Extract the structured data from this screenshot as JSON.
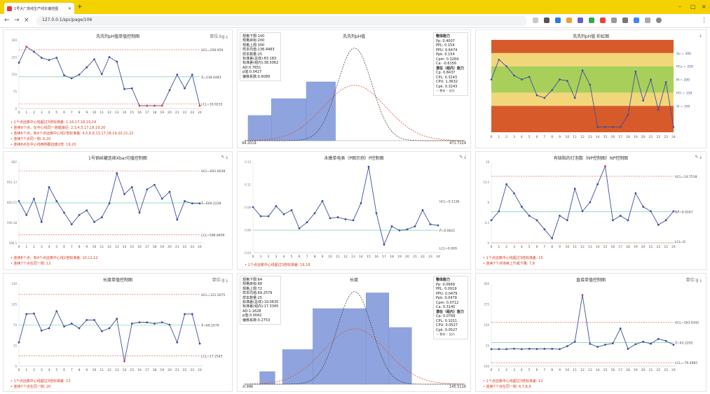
{
  "browser": {
    "tab_title": "1号大厂高线生产线长偏控图",
    "url": "127.0.0.1/spc/page/106"
  },
  "p1": {
    "title": "洗洗剂pH值单值控制图",
    "unit": "单位:kg",
    "notes": [
      "1个点远离中心线超过3倍标准差: 1,16,17,18,19,24",
      "连续9个点，在中心线同一侧或接近: 2,3,4,5,17,18,19,20",
      "连续6个点，有4个点远离中心线2倍标准差: 4,5,6,8,13,17,18,19,20,21,22",
      "连续7个点同一侧: 6,20",
      "连续8点在中心线两侧都远离2倍: 19,20"
    ]
  },
  "p2": {
    "title": "洗洗剂pH值",
    "stats": [
      "规格下限:100",
      "规格目标:200",
      "规格上限:300",
      "样本均值:138.4483",
      "样本数量:25",
      "标准差(总体):83.183",
      "标准差(组内):38.5062",
      "AD:0.7651",
      "p值:0.0427",
      "偏移系数:0.6089"
    ],
    "cap": [
      "Pp: 0.4007",
      "PPL: 0.154",
      "PPU: 0.6474",
      "Ppk: 0.154",
      "Cpm: 0.3264",
      "Ca: -0.6156",
      "Cp: 0.8437",
      "CPL: 0.3243",
      "CPU: 1.3632",
      "Cpk: 0.3243"
    ],
    "cap_h1": "整体能力",
    "cap_h2": "潜在（组内）能力",
    "legend": "— 整体  -- 组内",
    "xmin": "94.2019",
    "xmax": "471.7224"
  },
  "p3": {
    "title": "洗洗剂pH值 彩虹图",
    "zones": [
      "Su = 300",
      "PCu = 250",
      "M = 200",
      "PCl = 150",
      "Sl = 100"
    ]
  },
  "p4": {
    "title": "1号钢丝罐连续Xbar均值控制图",
    "notes": [
      "连续8个点，有4个点远离中心线2倍标准差: 10,11,12",
      "连续7个点在同一侧: 12"
    ]
  },
  "p5": {
    "title": "未缴单电表（P图示例）P控制图",
    "notes": [
      "1个点远离中心线超过3倍标准差: 16,18"
    ]
  },
  "p6": {
    "title": "有缺陷的灯泡数（NP控制图）NP控制图",
    "notes": [
      "1个点远离中心线超过3倍标准差: 15",
      "连续7个点持续上升或下降: 7,8"
    ]
  },
  "p7": {
    "title": "长度单值控制图",
    "unit": "单位:g",
    "notes": [
      "1个点远离中心线超过3倍标准差: 13",
      "连续7个点在同一侧: 20"
    ]
  },
  "p8": {
    "title": "长度",
    "stats": [
      "规格下限:64",
      "规格目标:68",
      "规格上限:72",
      "样本均值:69.2579",
      "样本数量:25",
      "标准差(总体):19.0635",
      "标准差(组内):17.3345",
      "AD:1.1628",
      "p值:0.0042",
      "偏移系数:0.2753"
    ],
    "cap": [
      "Pp: 0.0669",
      "PPL: 0.0919",
      "PPU: 0.0479",
      "Ppk: 0.0479",
      "Cpm: 0.0712",
      "Ca: 0.3145",
      "Cp: 0.0769",
      "CPL: 0.1011",
      "CPU: 0.0527",
      "Cpk: 0.0527"
    ],
    "cap_h1": "整体能力",
    "cap_h2": "潜在（组内）能力",
    "legend": "— 整体  -- 组内",
    "xmin": "-0.996",
    "xmax": "145.5116"
  },
  "p9": {
    "title": "直接单值控制图",
    "unit": "单位:g",
    "notes": [
      "1个点远离中心线超过3倍标准差: 12",
      "连续7个点在同一侧: 6,7,8,9"
    ]
  },
  "colors": {
    "accent": "#f3d200",
    "line": "#3e4f9a",
    "ucl": "#d9553a",
    "center": "#5fc39a",
    "red": "#e0432b",
    "zone_red": "#d75a2a",
    "zone_yellow": "#f2d77a",
    "zone_green": "#a8cf5a"
  },
  "chart_data": [
    {
      "id": "p1",
      "type": "line",
      "x": [
        0,
        1,
        2,
        3,
        4,
        5,
        6,
        7,
        8,
        9,
        10,
        11,
        12,
        13,
        14,
        15,
        16,
        17,
        18,
        19,
        20,
        21,
        22,
        23,
        24
      ],
      "values": [
        200,
        270,
        248,
        222,
        212,
        222,
        145,
        132,
        148,
        180,
        215,
        150,
        225,
        205,
        85,
        88,
        12,
        12,
        12,
        12,
        80,
        148,
        88,
        148,
        12
      ],
      "ucl": 256.959,
      "center": 138.4483,
      "lcl": 19.9215,
      "ylim": [
        0,
        300
      ],
      "ylabels": [
        "UCL=256.959",
        "X̄=138.4483",
        "LCL=19.9215"
      ]
    },
    {
      "id": "p2",
      "type": "histogram",
      "bins": [
        [
          100,
          140,
          0.003
        ],
        [
          140,
          200,
          0.005
        ],
        [
          200,
          250,
          0.007
        ]
      ],
      "xlim": [
        94,
        472
      ],
      "ylim": [
        0,
        0.012
      ]
    },
    {
      "id": "p3",
      "type": "line",
      "values": [
        200,
        275,
        250,
        215,
        200,
        210,
        140,
        130,
        160,
        200,
        195,
        130,
        235,
        180,
        20,
        20,
        20,
        20,
        65,
        230,
        120,
        200,
        85,
        190,
        20
      ],
      "ylim": [
        0,
        350
      ]
    },
    {
      "id": "p4",
      "type": "line",
      "values": [
        600.3,
        599.7,
        600.4,
        599.4,
        600.9,
        600.3,
        599.8,
        599.3,
        599.7,
        599.9,
        599.4,
        599.6,
        600.2,
        601.5,
        600.6,
        600.9,
        599.8,
        600.8,
        601,
        600.4,
        600.7,
        599.5,
        600.3,
        600.2,
        600.2
      ],
      "ucl": 601.6038,
      "center": 600.2228,
      "lcl": 598.8409,
      "ylim": [
        598.5,
        602
      ],
      "ylabels": [
        "UCL=601.6038",
        "X̄=600.2228",
        "LCL=598.8409"
      ]
    },
    {
      "id": "p5",
      "type": "line",
      "values": [
        0.085,
        0.076,
        0.076,
        0.086,
        0.078,
        0.082,
        0.064,
        0.07,
        0.079,
        0.091,
        0.074,
        0.075,
        0.073,
        0.072,
        0.089,
        0.125,
        0.079,
        0.048,
        0.066,
        0.062,
        0.063,
        0.066,
        0.082,
        0.068,
        0.067
      ],
      "center": 0.0621,
      "ylim": [
        0.04,
        0.13
      ],
      "ylabels": [
        "UCL=0.1136",
        "P̄=0.0621",
        "LCL=0.009"
      ]
    },
    {
      "id": "p6",
      "type": "line",
      "values": [
        5,
        7,
        13,
        11,
        8,
        6,
        5,
        3,
        1,
        6,
        5,
        12,
        7,
        9,
        13,
        17,
        5,
        6,
        5,
        11,
        8,
        7,
        4,
        5,
        7
      ],
      "ucl": 14.7518,
      "center": 6.9167,
      "lcl": 0,
      "ylim": [
        0,
        18
      ],
      "ylabels": [
        "UCL=14.7518",
        "NP̄=6.9167",
        "LCL=0"
      ]
    },
    {
      "id": "p7",
      "type": "line",
      "values": [
        40,
        88,
        89,
        60,
        64,
        93,
        67,
        72,
        64,
        78,
        78,
        59,
        64,
        80,
        8,
        72,
        74,
        74,
        72,
        74,
        70,
        40,
        88,
        88,
        38
      ],
      "ucl": 121.2675,
      "center": 69.2579,
      "lcl": 17.2543,
      "ylim": [
        0,
        140
      ],
      "ylabels": [
        "UCL=121.2675",
        "X̄=69.2579",
        "LCL=17.2543"
      ]
    },
    {
      "id": "p8",
      "type": "histogram",
      "bins": [
        [
          10,
          20,
          0.002
        ],
        [
          25,
          45,
          0.0055
        ],
        [
          45,
          80,
          0.012
        ],
        [
          80,
          95,
          0.0145
        ],
        [
          95,
          110,
          0.009
        ]
      ],
      "xlim": [
        0,
        145
      ],
      "ylim": [
        0,
        0.016
      ]
    },
    {
      "id": "p9",
      "type": "line",
      "values": [
        2,
        2,
        2,
        5,
        2,
        4,
        3,
        4,
        4,
        2,
        20,
        47,
        330,
        34,
        16,
        29,
        37,
        127,
        4,
        32,
        47,
        35,
        64,
        52,
        29
      ],
      "ucl": 163.9342,
      "center": 42.2205,
      "lcl": -79.4982,
      "ylim": [
        -100,
        400
      ],
      "ylabels": [
        "UCL=163.9342",
        "X̄=42.2205",
        "LCL=-79.4982"
      ]
    }
  ]
}
